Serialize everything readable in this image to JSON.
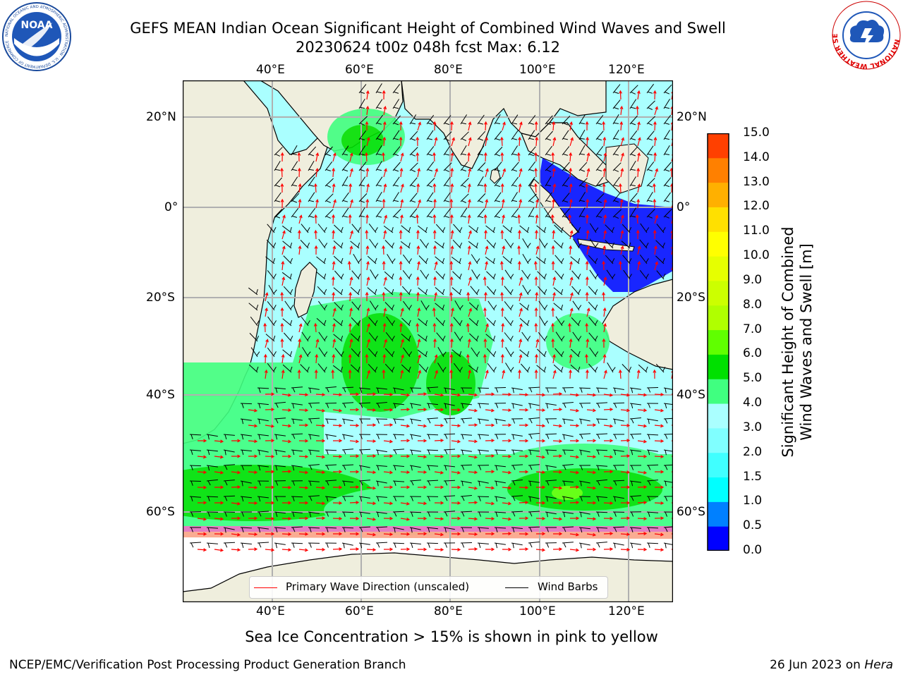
{
  "header": {
    "title_line1": "GEFS MEAN Indian Ocean Significant Height of Combined Wind Waves and Swell",
    "title_line2": "20230624 t00z 048h fcst   Max: 6.12"
  },
  "logos": {
    "noaa_text": "NOAA",
    "noaa_ring": "NATIONAL OCEANIC AND ATMOSPHERIC ADMINISTRATION · U.S. DEPARTMENT OF COMMERCE",
    "nws_ring": "NATIONAL WEATHER SERVICE"
  },
  "axes": {
    "lon_top": [
      "40°E",
      "60°E",
      "80°E",
      "100°E",
      "120°E"
    ],
    "lon_bottom": [
      "40°E",
      "60°E",
      "80°E",
      "100°E",
      "120°E"
    ],
    "lat_left": [
      "20°N",
      "0°",
      "20°S",
      "40°S",
      "60°S"
    ],
    "lat_right": [
      "20°N",
      "0°",
      "20°S",
      "40°S",
      "60°S"
    ]
  },
  "legend": {
    "wave_label": "Primary Wave Direction (unscaled)",
    "barb_label": "Wind Barbs",
    "wave_color": "#ff0000",
    "barb_color": "#000000"
  },
  "colorbar": {
    "ticks": [
      "15.0",
      "14.0",
      "13.0",
      "12.0",
      "11.0",
      "10.0",
      "9.0",
      "8.0",
      "7.0",
      "6.0",
      "5.0",
      "4.0",
      "3.0",
      "2.0",
      "1.5",
      "1.0",
      "0.5",
      "0.0"
    ],
    "label_line1": "Significant Height of Combined",
    "label_line2": "Wind Waves and Swell [m]",
    "colors_bottom_to_top": [
      "#0000ff",
      "#0080ff",
      "#00ffff",
      "#40ffff",
      "#80ffff",
      "#aaffff",
      "#40ff80",
      "#00e000",
      "#60ff00",
      "#b0ff00",
      "#ccff00",
      "#e6ff00",
      "#ffff00",
      "#ffe000",
      "#ffb000",
      "#ff8000",
      "#ff4000",
      "#ff0000"
    ]
  },
  "map": {
    "land_color": "#efeedd",
    "ice_colors": [
      "#ff66cc",
      "#ff99ff",
      "#ffcc66",
      "#ffff88"
    ]
  },
  "caption": "Sea Ice Concentration > 15% is shown in pink to yellow",
  "footer": {
    "left": "NCEP/EMC/Verification Post Processing Product Generation Branch",
    "date": "26 Jun 2023 on ",
    "host": "Hera"
  }
}
